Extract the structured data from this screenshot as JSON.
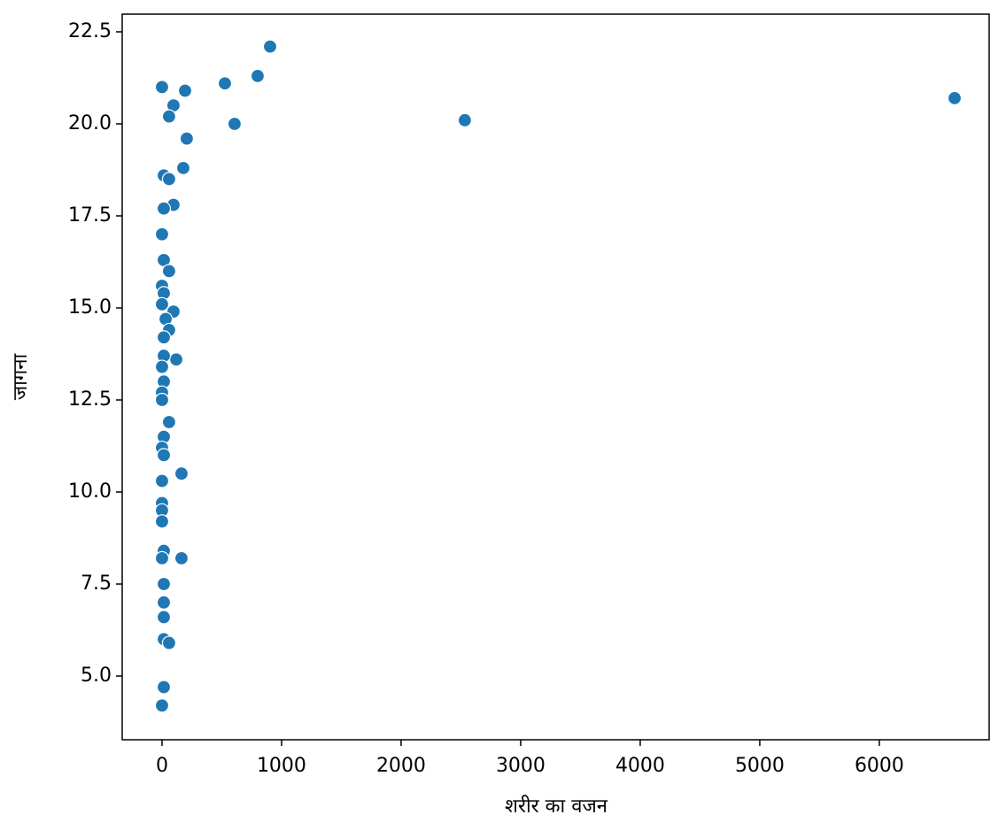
{
  "chart_data": {
    "type": "scatter",
    "x_label": "शरीर का वजन",
    "y_label": "जागना",
    "color": "#1f77b4",
    "edgecolor": "#ffffff",
    "xlim": [
      -333,
      6919
    ],
    "ylim": [
      3.27,
      22.98
    ],
    "xticks": [
      0,
      1000,
      2000,
      3000,
      4000,
      5000,
      6000
    ],
    "yticks": [
      {
        "value": 5,
        "label": "5.0"
      },
      7.5,
      {
        "value": 10,
        "label": "10.0"
      },
      12.5,
      {
        "value": 15,
        "label": "15.0"
      },
      17.5,
      {
        "value": 20,
        "label": "20.0"
      },
      22.5
    ],
    "x": [
      0,
      193,
      96,
      59,
      526,
      800,
      904,
      607,
      2533,
      6630,
      207,
      178,
      15,
      59,
      96,
      15,
      0,
      15,
      59,
      0,
      15,
      96,
      0,
      30,
      59,
      15,
      119,
      15,
      0,
      15,
      0,
      0,
      59,
      15,
      0,
      15,
      163,
      0,
      0,
      0,
      0,
      15,
      0,
      163,
      15,
      15,
      15,
      15,
      59,
      15,
      0
    ],
    "y": [
      21.0,
      20.9,
      20.5,
      20.2,
      21.1,
      21.3,
      22.1,
      20.0,
      20.1,
      20.7,
      19.6,
      18.8,
      18.6,
      18.5,
      17.8,
      17.7,
      17.0,
      16.3,
      16.0,
      15.6,
      15.4,
      14.9,
      15.1,
      14.7,
      14.4,
      14.2,
      13.6,
      13.7,
      13.4,
      13.0,
      12.7,
      12.5,
      11.9,
      11.5,
      11.2,
      11.0,
      10.5,
      10.3,
      9.7,
      9.5,
      9.2,
      8.4,
      8.2,
      8.2,
      7.5,
      7.0,
      6.6,
      6.0,
      5.9,
      4.7,
      4.2
    ]
  }
}
